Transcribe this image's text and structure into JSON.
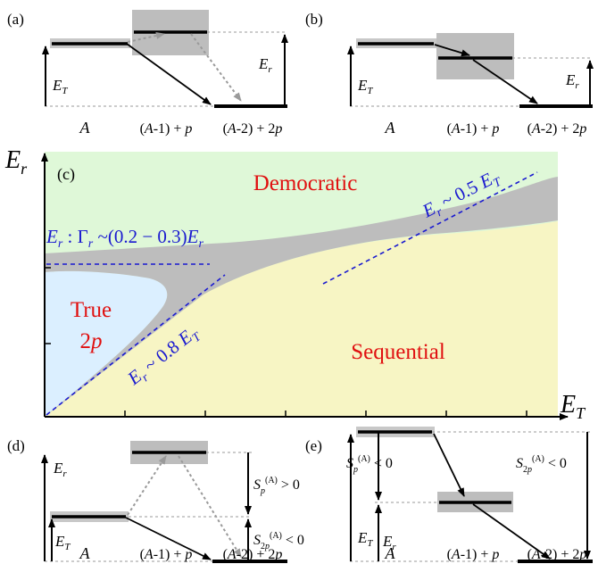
{
  "panels": {
    "a": {
      "tag": "(a)"
    },
    "b": {
      "tag": "(b)"
    },
    "c": {
      "tag": "(c)"
    },
    "d": {
      "tag": "(d)"
    },
    "e": {
      "tag": "(e)"
    }
  },
  "labels": {
    "A": "A",
    "Am1p": "(A-1) + p",
    "Am2p": "(A-2) + 2p",
    "ET": "E_T",
    "Er": "E_r",
    "Sp_pos": "S_p^(A) > 0",
    "S2p_neg": "S_2p^(A) < 0",
    "Sp_neg": "S_p^(A) < 0"
  },
  "main": {
    "y_axis": "E_r",
    "x_axis": "E_T",
    "regions": {
      "democratic": "Democratic",
      "true_line1": "True",
      "true_line2": "2p",
      "sequential": "Sequential"
    },
    "annotations": {
      "width": "E_r : Γ_r ~(0.2 − 0.3)E_r",
      "slope_low": "E_r ~ 0.8 E_T",
      "slope_high": "E_r ~ 0.5 E_T"
    },
    "colors": {
      "democratic": "#dff8d8",
      "sequential": "#f7f5c4",
      "true2p": "#dbefff",
      "transition": "#bdbdbd",
      "annotation": "#1a1ad0",
      "region_label": "#e01010"
    }
  }
}
